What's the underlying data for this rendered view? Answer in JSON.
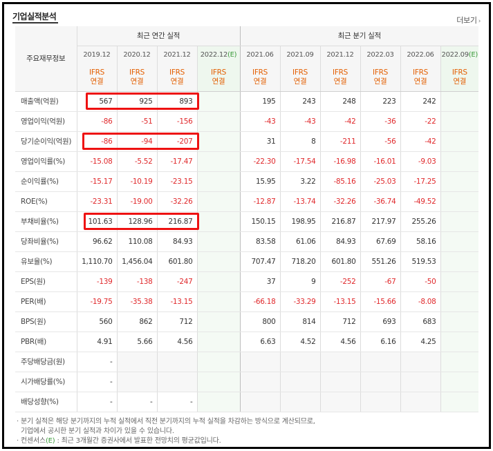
{
  "header": {
    "title": "기업실적분석",
    "more_label": "더보기"
  },
  "table": {
    "corner_label": "주요재무정보",
    "group_annual": "최근 연간 실적",
    "group_quarter": "최근 분기 실적",
    "annual_periods": [
      "2019.12",
      "2020.12",
      "2021.12",
      "2022.12"
    ],
    "annual_est_mark": "(E)",
    "quarter_periods": [
      "2021.06",
      "2021.09",
      "2021.12",
      "2022.03",
      "2022.06",
      "2022.09"
    ],
    "quarter_est_mark": "(E)",
    "ifrs_line1": "IFRS",
    "ifrs_line2": "연결",
    "rows": [
      {
        "label": "매출액(억원)",
        "annual": [
          "567",
          "925",
          "893",
          ""
        ],
        "quarter": [
          "195",
          "243",
          "248",
          "223",
          "242",
          ""
        ]
      },
      {
        "label": "영업이익(억원)",
        "annual": [
          "-86",
          "-51",
          "-156",
          ""
        ],
        "quarter": [
          "-43",
          "-43",
          "-42",
          "-36",
          "-22",
          ""
        ]
      },
      {
        "label": "당기순이익(억원)",
        "annual": [
          "-86",
          "-94",
          "-207",
          ""
        ],
        "quarter": [
          "31",
          "8",
          "-211",
          "-56",
          "-42",
          ""
        ]
      },
      {
        "label": "영업이익률(%)",
        "annual": [
          "-15.08",
          "-5.52",
          "-17.47",
          ""
        ],
        "quarter": [
          "-22.30",
          "-17.54",
          "-16.98",
          "-16.01",
          "-9.03",
          ""
        ]
      },
      {
        "label": "순이익률(%)",
        "annual": [
          "-15.17",
          "-10.19",
          "-23.15",
          ""
        ],
        "quarter": [
          "15.95",
          "3.22",
          "-85.16",
          "-25.03",
          "-17.25",
          ""
        ]
      },
      {
        "label": "ROE(%)",
        "annual": [
          "-23.31",
          "-19.00",
          "-32.26",
          ""
        ],
        "quarter": [
          "-12.87",
          "-13.74",
          "-32.26",
          "-36.74",
          "-49.52",
          ""
        ]
      },
      {
        "label": "부채비율(%)",
        "annual": [
          "101.63",
          "128.96",
          "216.87",
          ""
        ],
        "quarter": [
          "150.15",
          "198.95",
          "216.87",
          "217.97",
          "255.26",
          ""
        ]
      },
      {
        "label": "당좌비율(%)",
        "annual": [
          "96.62",
          "110.08",
          "84.93",
          ""
        ],
        "quarter": [
          "83.58",
          "61.06",
          "84.93",
          "67.69",
          "58.16",
          ""
        ]
      },
      {
        "label": "유보율(%)",
        "annual": [
          "1,110.70",
          "1,456.04",
          "601.80",
          ""
        ],
        "quarter": [
          "707.47",
          "718.20",
          "601.80",
          "551.26",
          "519.53",
          ""
        ]
      },
      {
        "label": "EPS(원)",
        "annual": [
          "-139",
          "-138",
          "-247",
          ""
        ],
        "quarter": [
          "37",
          "9",
          "-252",
          "-67",
          "-50",
          ""
        ]
      },
      {
        "label": "PER(배)",
        "annual": [
          "-19.75",
          "-35.38",
          "-13.15",
          ""
        ],
        "quarter": [
          "-66.18",
          "-33.29",
          "-13.15",
          "-15.66",
          "-8.08",
          ""
        ]
      },
      {
        "label": "BPS(원)",
        "annual": [
          "560",
          "862",
          "712",
          ""
        ],
        "quarter": [
          "800",
          "814",
          "712",
          "693",
          "683",
          ""
        ]
      },
      {
        "label": "PBR(배)",
        "annual": [
          "4.91",
          "5.66",
          "4.56",
          ""
        ],
        "quarter": [
          "6.63",
          "4.52",
          "4.56",
          "6.16",
          "4.25",
          ""
        ]
      },
      {
        "label": "주당배당금(원)",
        "annual": [
          "-",
          "",
          "",
          ""
        ],
        "quarter": [
          "",
          "",
          "",
          "",
          "",
          ""
        ],
        "empty_after_first": true
      },
      {
        "label": "시가배당률(%)",
        "annual": [
          "-",
          "",
          "",
          ""
        ],
        "quarter": [
          "",
          "",
          "",
          "",
          "",
          ""
        ],
        "empty_after_first": true
      },
      {
        "label": "배당성향(%)",
        "annual": [
          "-",
          "-",
          "-",
          ""
        ],
        "quarter": [
          "",
          "",
          "",
          "",
          "",
          ""
        ],
        "empty_after_first": true
      }
    ]
  },
  "notes": {
    "line1": "· 분기 실적은 해당 분기까지의 누적 실적에서 직전 분기까지의 누적 실적을 차감하는 방식으로 계산되므로,",
    "line2": "  기업에서 공시한 분기 실적과 차이가 있을 수 있습니다.",
    "line3_prefix": "· 컨센서스",
    "line3_mark": "(E)",
    "line3_suffix": " : 최근 3개월간 증권사에서 발표한 전망치의 평균값입니다."
  },
  "colors": {
    "negative": "#e0282b",
    "ifrs": "#e35e00",
    "estimate": "#3a9a3a",
    "highlight": "#ee1111"
  }
}
